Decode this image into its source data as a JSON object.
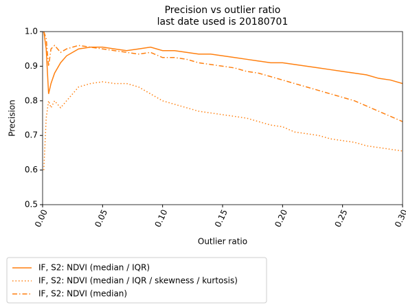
{
  "chart_data": {
    "type": "line",
    "title": "Precision vs outlier ratio",
    "subtitle": "last date used is 20180701",
    "x_label": "Outlier ratio",
    "y_label": "Precision",
    "x": [
      0.001,
      0.003,
      0.005,
      0.007,
      0.01,
      0.015,
      0.02,
      0.03,
      0.04,
      0.05,
      0.06,
      0.07,
      0.08,
      0.09,
      0.1,
      0.11,
      0.12,
      0.13,
      0.14,
      0.15,
      0.16,
      0.17,
      0.18,
      0.19,
      0.2,
      0.21,
      0.22,
      0.23,
      0.24,
      0.25,
      0.26,
      0.27,
      0.28,
      0.29,
      0.3
    ],
    "series": [
      {
        "name": "IF, S2: NDVI (median / IQR)",
        "color": "#ff7f0e",
        "linestyle": "solid",
        "values": [
          1.0,
          0.95,
          0.82,
          0.85,
          0.88,
          0.91,
          0.93,
          0.95,
          0.955,
          0.955,
          0.95,
          0.945,
          0.95,
          0.955,
          0.945,
          0.945,
          0.94,
          0.935,
          0.935,
          0.93,
          0.925,
          0.92,
          0.915,
          0.91,
          0.91,
          0.905,
          0.9,
          0.895,
          0.89,
          0.885,
          0.88,
          0.875,
          0.865,
          0.86,
          0.85
        ]
      },
      {
        "name": "IF, S2: NDVI (median / IQR / skewness / kurtosis)",
        "color": "#ff7f0e",
        "linestyle": "dotted",
        "values": [
          0.6,
          0.75,
          0.8,
          0.78,
          0.8,
          0.78,
          0.8,
          0.84,
          0.85,
          0.855,
          0.85,
          0.85,
          0.84,
          0.82,
          0.8,
          0.79,
          0.78,
          0.77,
          0.765,
          0.76,
          0.755,
          0.75,
          0.74,
          0.73,
          0.725,
          0.71,
          0.705,
          0.7,
          0.69,
          0.685,
          0.68,
          0.67,
          0.665,
          0.66,
          0.655
        ]
      },
      {
        "name": "IF, S2: NDVI (median)",
        "color": "#ff7f0e",
        "linestyle": "dashdot",
        "values": [
          1.0,
          0.98,
          0.9,
          0.95,
          0.96,
          0.94,
          0.95,
          0.96,
          0.955,
          0.95,
          0.945,
          0.94,
          0.935,
          0.94,
          0.925,
          0.925,
          0.92,
          0.91,
          0.905,
          0.9,
          0.895,
          0.885,
          0.88,
          0.87,
          0.86,
          0.85,
          0.84,
          0.83,
          0.82,
          0.81,
          0.8,
          0.785,
          0.77,
          0.755,
          0.74
        ]
      }
    ],
    "xlim": [
      0,
      0.3
    ],
    "ylim": [
      0.5,
      1.0
    ],
    "xticks": [
      {
        "value": 0,
        "label": "0.00"
      },
      0.05,
      {
        "value": 0.1,
        "label": "0.10"
      },
      0.15,
      {
        "value": 0.2,
        "label": "0.20"
      },
      0.25,
      {
        "value": 0.3,
        "label": "0.30"
      }
    ],
    "yticks": [
      0.5,
      0.6,
      0.7,
      0.8,
      0.9,
      {
        "value": 1.0,
        "label": "1.0"
      }
    ],
    "grid": false,
    "legend": "below"
  }
}
